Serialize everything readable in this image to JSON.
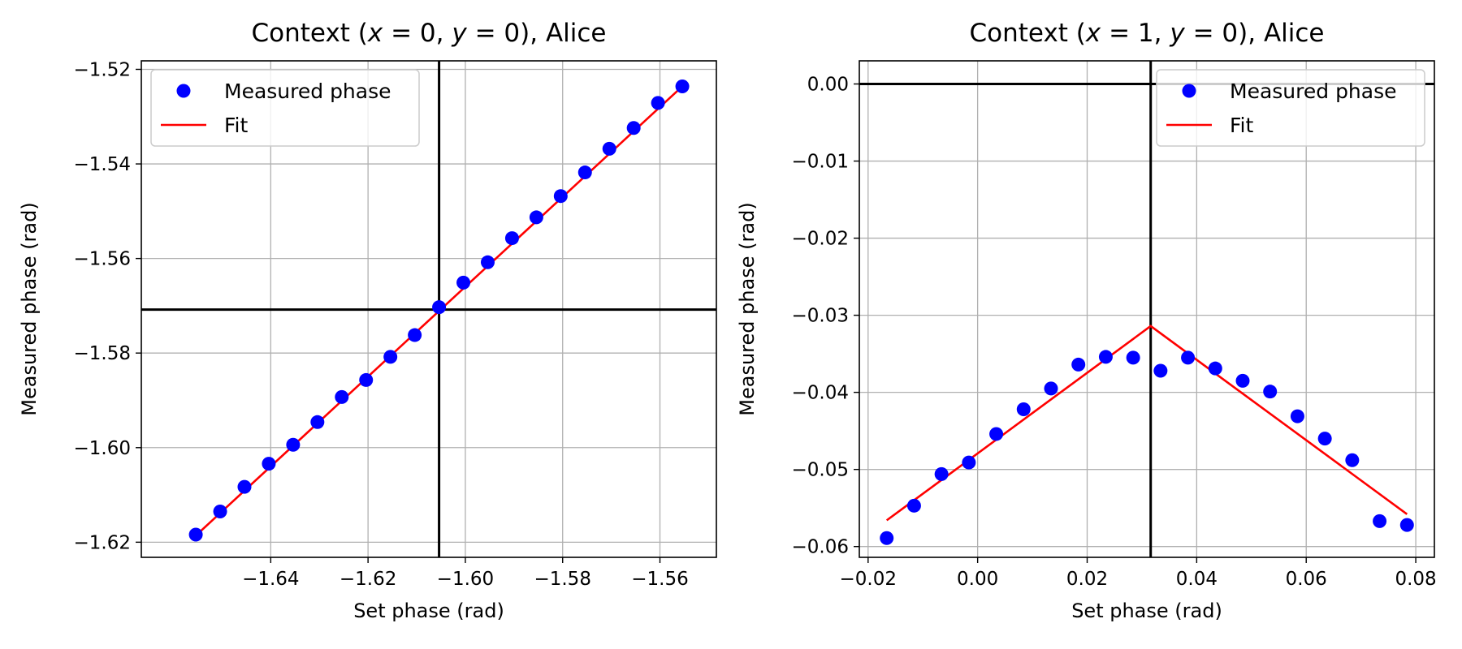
{
  "chart_data": [
    {
      "type": "scatter",
      "title_parts": [
        "Context (",
        "x",
        " = 0, ",
        "y",
        " = 0), Alice"
      ],
      "xlabel": "Set phase (rad)",
      "ylabel": "Measured phase (rad)",
      "xlim": [
        -1.6666,
        -1.5484
      ],
      "ylim": [
        -1.6232,
        -1.5182
      ],
      "xticks": [
        -1.64,
        -1.62,
        -1.6,
        -1.58,
        -1.56
      ],
      "xtick_labels": [
        "−1.64",
        "−1.62",
        "−1.60",
        "−1.58",
        "−1.56"
      ],
      "yticks": [
        -1.62,
        -1.6,
        -1.58,
        -1.56,
        -1.54,
        -1.52
      ],
      "ytick_labels": [
        "−1.62",
        "−1.60",
        "−1.58",
        "−1.56",
        "−1.54",
        "−1.52"
      ],
      "grid": true,
      "legend_position": "top-left",
      "reference_lines": {
        "x": -1.6054,
        "y": -1.5708
      },
      "series": [
        {
          "name": "Measured phase",
          "kind": "points",
          "color": "#0000ff",
          "x": [
            -1.6554,
            -1.6504,
            -1.6454,
            -1.6404,
            -1.6354,
            -1.6304,
            -1.6254,
            -1.6204,
            -1.6154,
            -1.6104,
            -1.6054,
            -1.6004,
            -1.5954,
            -1.5904,
            -1.5854,
            -1.5804,
            -1.5754,
            -1.5704,
            -1.5654,
            -1.5604,
            -1.5554
          ],
          "y": [
            -1.6184,
            -1.6135,
            -1.6083,
            -1.6034,
            -1.5994,
            -1.5946,
            -1.5893,
            -1.5857,
            -1.5808,
            -1.5762,
            -1.5703,
            -1.5651,
            -1.5608,
            -1.5557,
            -1.5513,
            -1.5468,
            -1.5418,
            -1.5368,
            -1.5324,
            -1.5271,
            -1.5236
          ]
        },
        {
          "name": "Fit",
          "kind": "line",
          "color": "#ff0000",
          "x": [
            -1.6554,
            -1.5554
          ],
          "y": [
            -1.6186,
            -1.5236
          ]
        }
      ]
    },
    {
      "type": "scatter",
      "title_parts": [
        "Context (",
        "x",
        " = 1, ",
        "y",
        " = 0), Alice"
      ],
      "xlabel": "Set phase (rad)",
      "ylabel": "Measured phase (rad)",
      "xlim": [
        -0.0216,
        0.0834
      ],
      "ylim": [
        -0.0614,
        0.003
      ],
      "xticks": [
        -0.02,
        0.0,
        0.02,
        0.04,
        0.06,
        0.08
      ],
      "xtick_labels": [
        "−0.02",
        "0.00",
        "0.02",
        "0.04",
        "0.06",
        "0.08"
      ],
      "yticks": [
        -0.06,
        -0.05,
        -0.04,
        -0.03,
        -0.02,
        -0.01,
        0.0
      ],
      "ytick_labels": [
        "−0.06",
        "−0.05",
        "−0.04",
        "−0.03",
        "−0.02",
        "−0.01",
        "0.00"
      ],
      "grid": true,
      "legend_position": "top-right",
      "reference_lines": {
        "x": 0.0316,
        "y": 0.0
      },
      "series": [
        {
          "name": "Measured phase",
          "kind": "points",
          "color": "#0000ff",
          "x": [
            -0.0166,
            -0.0116,
            -0.0066,
            -0.0016,
            0.0034,
            0.0084,
            0.0134,
            0.0184,
            0.0234,
            0.0284,
            0.0334,
            0.0384,
            0.0434,
            0.0484,
            0.0534,
            0.0584,
            0.0634,
            0.0684,
            0.0734,
            0.0784
          ],
          "y": [
            -0.0589,
            -0.0547,
            -0.0506,
            -0.0491,
            -0.0454,
            -0.0422,
            -0.0395,
            -0.0364,
            -0.0354,
            -0.0355,
            -0.0372,
            -0.0355,
            -0.0369,
            -0.0385,
            -0.0399,
            -0.0431,
            -0.046,
            -0.0488,
            -0.0567,
            -0.0572
          ]
        },
        {
          "name": "Fit",
          "kind": "line",
          "color": "#ff0000",
          "x": [
            -0.0166,
            0.0316,
            0.0784
          ],
          "y": [
            -0.0566,
            -0.0314,
            -0.0558
          ]
        }
      ]
    }
  ]
}
